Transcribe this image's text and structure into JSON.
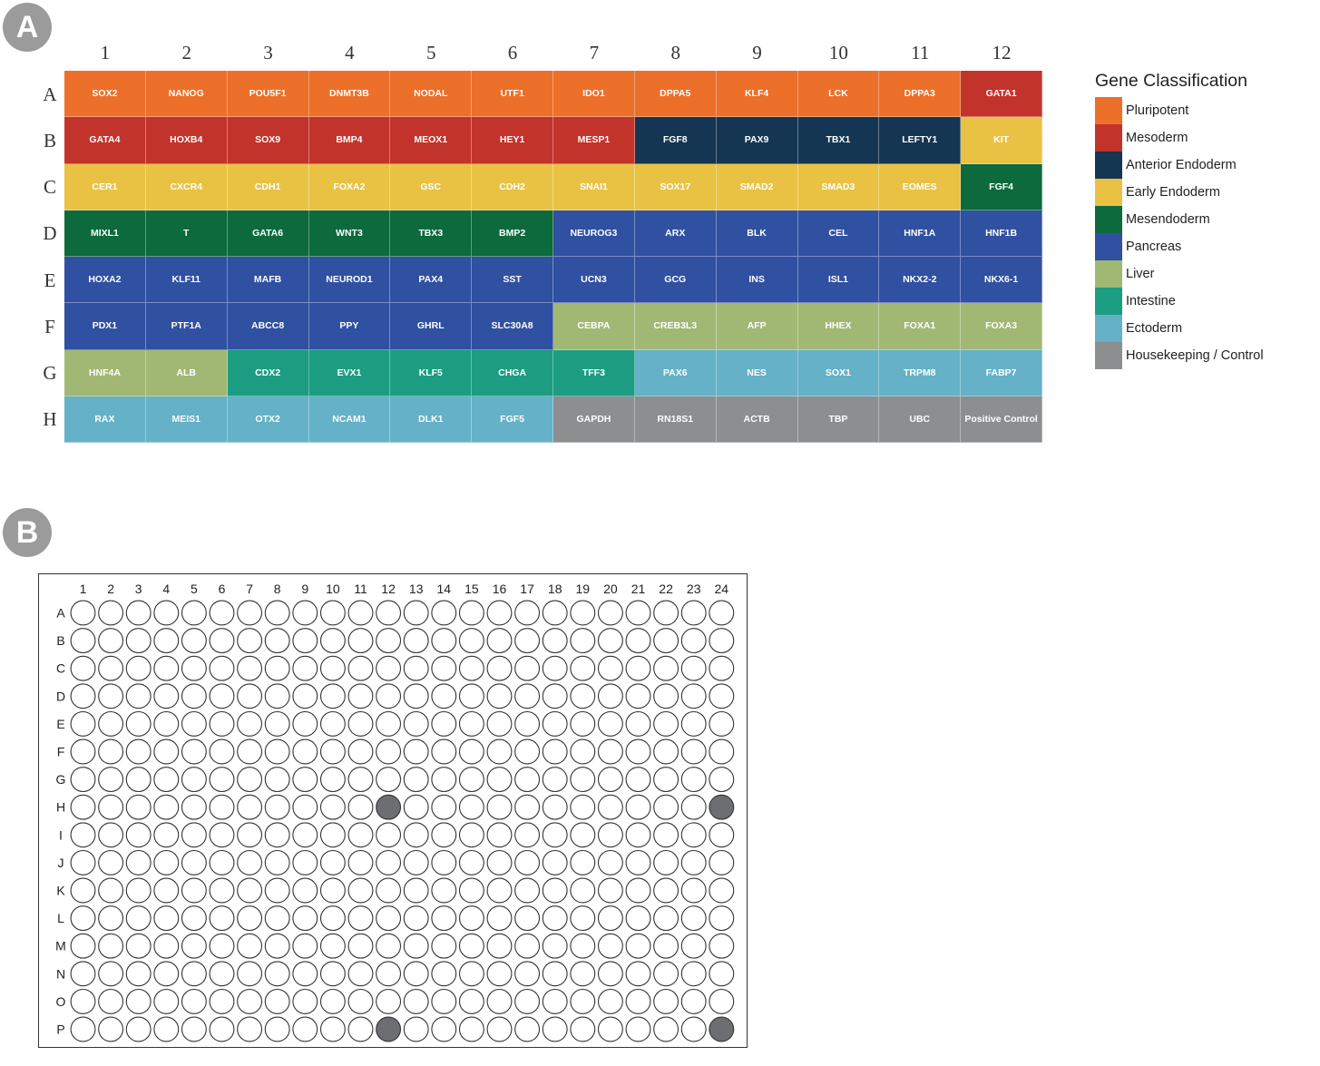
{
  "panel_a": {
    "badge": "A",
    "columns": [
      "1",
      "2",
      "3",
      "4",
      "5",
      "6",
      "7",
      "8",
      "9",
      "10",
      "11",
      "12"
    ],
    "rows": [
      "A",
      "B",
      "C",
      "D",
      "E",
      "F",
      "G",
      "H"
    ],
    "wells": [
      [
        "SOX2",
        "NANOG",
        "POU5F1",
        "DNMT3B",
        "NODAL",
        "UTF1",
        "IDO1",
        "DPPA5",
        "KLF4",
        "LCK",
        "DPPA3",
        "GATA1"
      ],
      [
        "GATA4",
        "HOXB4",
        "SOX9",
        "BMP4",
        "MEOX1",
        "HEY1",
        "MESP1",
        "FGF8",
        "PAX9",
        "TBX1",
        "LEFTY1",
        "KIT"
      ],
      [
        "CER1",
        "CXCR4",
        "CDH1",
        "FOXA2",
        "GSC",
        "CDH2",
        "SNAI1",
        "SOX17",
        "SMAD2",
        "SMAD3",
        "EOMES",
        "FGF4"
      ],
      [
        "MIXL1",
        "T",
        "GATA6",
        "WNT3",
        "TBX3",
        "BMP2",
        "NEUROG3",
        "ARX",
        "BLK",
        "CEL",
        "HNF1A",
        "HNF1B"
      ],
      [
        "HOXA2",
        "KLF11",
        "MAFB",
        "NEUROD1",
        "PAX4",
        "SST",
        "UCN3",
        "GCG",
        "INS",
        "ISL1",
        "NKX2-2",
        "NKX6-1"
      ],
      [
        "PDX1",
        "PTF1A",
        "ABCC8",
        "PPY",
        "GHRL",
        "SLC30A8",
        "CEBPA",
        "CREB3L3",
        "AFP",
        "HHEX",
        "FOXA1",
        "FOXA3"
      ],
      [
        "HNF4A",
        "ALB",
        "CDX2",
        "EVX1",
        "KLF5",
        "CHGA",
        "TFF3",
        "PAX6",
        "NES",
        "SOX1",
        "TRPM8",
        "FABP7"
      ],
      [
        "RAX",
        "MEIS1",
        "OTX2",
        "NCAM1",
        "DLK1",
        "FGF5",
        "GAPDH",
        "RN18S1",
        "ACTB",
        "TBP",
        "UBC",
        "Positive Control"
      ]
    ],
    "well_class": [
      [
        0,
        0,
        0,
        0,
        0,
        0,
        0,
        0,
        0,
        0,
        0,
        1
      ],
      [
        1,
        1,
        1,
        1,
        1,
        1,
        1,
        2,
        2,
        2,
        2,
        3
      ],
      [
        3,
        3,
        3,
        3,
        3,
        3,
        3,
        3,
        3,
        3,
        3,
        4
      ],
      [
        4,
        4,
        4,
        4,
        4,
        4,
        5,
        5,
        5,
        5,
        5,
        5
      ],
      [
        5,
        5,
        5,
        5,
        5,
        5,
        5,
        5,
        5,
        5,
        5,
        5
      ],
      [
        5,
        5,
        5,
        5,
        5,
        5,
        6,
        6,
        6,
        6,
        6,
        6
      ],
      [
        6,
        6,
        7,
        7,
        7,
        7,
        7,
        8,
        8,
        8,
        8,
        8
      ],
      [
        8,
        8,
        8,
        8,
        8,
        8,
        9,
        9,
        9,
        9,
        9,
        9
      ]
    ],
    "legend": {
      "title": "Gene Classification",
      "items": [
        {
          "label": "Pluripotent",
          "color": "#ec6f2a"
        },
        {
          "label": "Mesoderm",
          "color": "#c2332c"
        },
        {
          "label": "Anterior Endoderm",
          "color": "#143652"
        },
        {
          "label": "Early Endoderm",
          "color": "#e9c243"
        },
        {
          "label": "Mesendoderm",
          "color": "#0c6a3d"
        },
        {
          "label": "Pancreas",
          "color": "#3050a1"
        },
        {
          "label": "Liver",
          "color": "#a1b874"
        },
        {
          "label": "Intestine",
          "color": "#1c9d82"
        },
        {
          "label": "Ectoderm",
          "color": "#65b1c7"
        },
        {
          "label": "Housekeeping / Control",
          "color": "#8d8e90"
        }
      ]
    }
  },
  "panel_b": {
    "badge": "B",
    "columns": [
      "1",
      "2",
      "3",
      "4",
      "5",
      "6",
      "7",
      "8",
      "9",
      "10",
      "11",
      "12",
      "13",
      "14",
      "15",
      "16",
      "17",
      "18",
      "19",
      "20",
      "21",
      "22",
      "23",
      "24"
    ],
    "rows": [
      "A",
      "B",
      "C",
      "D",
      "E",
      "F",
      "G",
      "H",
      "I",
      "J",
      "K",
      "L",
      "M",
      "N",
      "O",
      "P"
    ],
    "filled_wells": [
      [
        "H",
        "12"
      ],
      [
        "H",
        "24"
      ],
      [
        "P",
        "12"
      ],
      [
        "P",
        "24"
      ]
    ],
    "empty_color": "#ffffff",
    "filled_color": "#6d6e71"
  }
}
